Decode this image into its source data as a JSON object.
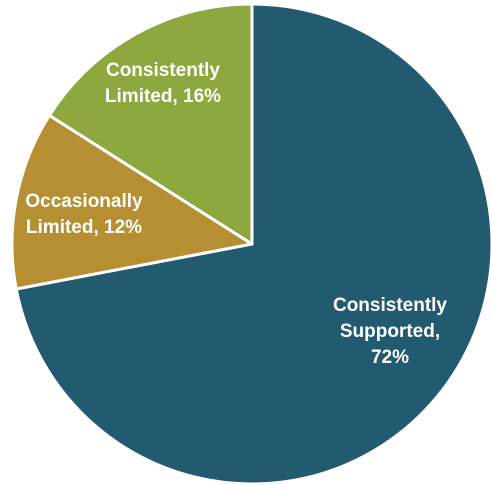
{
  "chart_data": {
    "type": "pie",
    "title": "",
    "legend": "none",
    "slices": [
      {
        "label": "Consistently Supported",
        "value": 72,
        "label_lines": [
          "Consistently",
          "Supported,",
          "72%"
        ],
        "color": "#225a70"
      },
      {
        "label": "Occasionally Limited",
        "value": 12,
        "label_lines": [
          "Occasionally",
          "Limited, 12%"
        ],
        "color": "#b58f31"
      },
      {
        "label": "Consistently Limited",
        "value": 16,
        "label_lines": [
          "Consistently",
          "Limited, 16%"
        ],
        "color": "#8ca83f"
      }
    ]
  }
}
